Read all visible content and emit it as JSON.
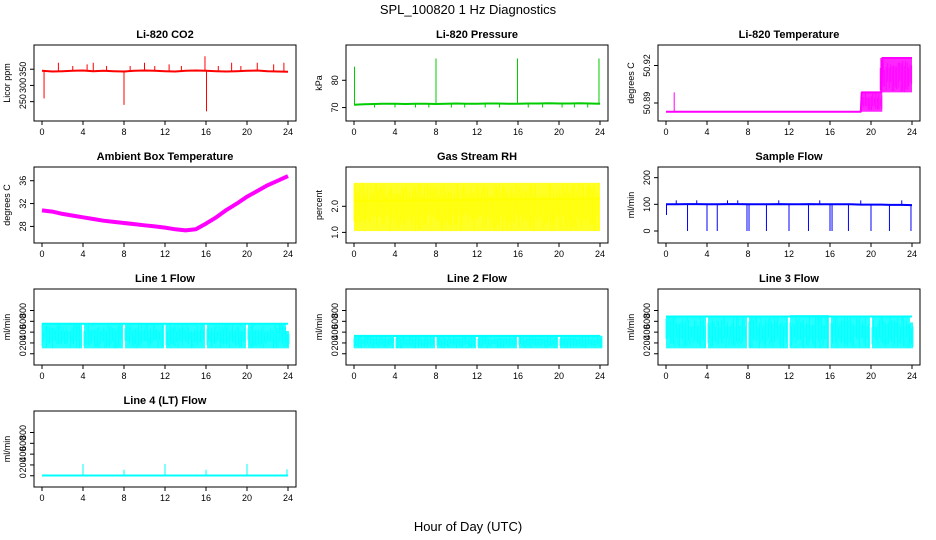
{
  "figure": {
    "title": "SPL_100820  1 Hz Diagnostics",
    "xlabel": "Hour of Day (UTC)"
  },
  "chart_data": [
    {
      "type": "line",
      "title": "Li-820 CO2",
      "ylabel": "Licor ppm",
      "color": "#ff0000",
      "xlim": [
        0,
        24
      ],
      "ylim": [
        215,
        400
      ],
      "xticks": [
        "0",
        "4",
        "8",
        "12",
        "16",
        "20",
        "24"
      ],
      "yticks": [
        250,
        300,
        350
      ],
      "x": [
        0,
        1,
        2,
        3,
        4,
        5,
        6,
        7,
        8,
        9,
        10,
        11,
        12,
        13,
        14,
        15,
        16,
        17,
        18,
        19,
        20,
        21,
        22,
        23,
        24
      ],
      "values": [
        345,
        343,
        344,
        345,
        346,
        344,
        345,
        344,
        343,
        345,
        346,
        345,
        344,
        343,
        345,
        346,
        345,
        344,
        343,
        344,
        345,
        346,
        344,
        343,
        342
      ],
      "spikes": [
        [
          0.2,
          260
        ],
        [
          1.6,
          370
        ],
        [
          3.0,
          360
        ],
        [
          4.4,
          365
        ],
        [
          5.0,
          370
        ],
        [
          6.3,
          360
        ],
        [
          8.0,
          240
        ],
        [
          8.6,
          360
        ],
        [
          10.0,
          370
        ],
        [
          11.0,
          360
        ],
        [
          12.4,
          365
        ],
        [
          13.6,
          360
        ],
        [
          15.9,
          390
        ],
        [
          16.05,
          220
        ],
        [
          17.2,
          360
        ],
        [
          18.5,
          370
        ],
        [
          19.4,
          360
        ],
        [
          21.0,
          370
        ],
        [
          22.6,
          365
        ],
        [
          23.6,
          370
        ]
      ]
    },
    {
      "type": "line",
      "title": "Li-820 Pressure",
      "ylabel": "kPa",
      "color": "#00cc00",
      "xlim": [
        0,
        24
      ],
      "ylim": [
        68,
        90
      ],
      "xticks": [
        "0",
        "4",
        "8",
        "12",
        "16",
        "20",
        "24"
      ],
      "yticks": [
        70,
        80
      ],
      "x": [
        0,
        1,
        2,
        3,
        4,
        5,
        6,
        7,
        8,
        9,
        10,
        11,
        12,
        13,
        14,
        15,
        16,
        17,
        18,
        19,
        20,
        21,
        22,
        23,
        24
      ],
      "values": [
        71,
        71.2,
        71.3,
        71.4,
        71.4,
        71.3,
        71.4,
        71.4,
        71.3,
        71.4,
        71.5,
        71.4,
        71.4,
        71.5,
        71.5,
        71.4,
        71.4,
        71.5,
        71.5,
        71.6,
        71.5,
        71.5,
        71.6,
        71.5,
        71.4
      ],
      "spikes": [
        [
          0.05,
          85
        ],
        [
          8.0,
          88
        ],
        [
          15.95,
          88
        ],
        [
          23.9,
          88
        ],
        [
          2.0,
          70
        ],
        [
          4.0,
          70
        ],
        [
          6.0,
          70
        ],
        [
          7.3,
          70
        ],
        [
          9.5,
          70
        ],
        [
          10.8,
          70
        ],
        [
          12.8,
          70
        ],
        [
          14.2,
          70
        ],
        [
          17.0,
          70
        ],
        [
          18.4,
          70
        ],
        [
          20.3,
          70
        ],
        [
          21.5,
          70
        ],
        [
          22.8,
          70
        ]
      ]
    },
    {
      "type": "line",
      "title": "Li-820 Temperature",
      "ylabel": "degrees C",
      "color": "#ff00ff",
      "xlim": [
        0,
        24
      ],
      "ylim": [
        50.882,
        50.93
      ],
      "xticks": [
        "0",
        "4",
        "8",
        "12",
        "16",
        "20",
        "24"
      ],
      "yticks": [
        50.89,
        50.92
      ],
      "yticklabels": [
        "50.89",
        "50.92"
      ],
      "x": [
        0,
        1,
        2,
        3,
        4,
        5,
        6,
        7,
        8,
        9,
        10,
        11,
        12,
        13,
        14,
        15,
        16,
        17,
        18,
        19,
        19.1,
        21,
        21.1,
        24
      ],
      "values": [
        50.883,
        50.883,
        50.883,
        50.883,
        50.883,
        50.883,
        50.883,
        50.883,
        50.883,
        50.883,
        50.883,
        50.883,
        50.883,
        50.883,
        50.883,
        50.883,
        50.883,
        50.883,
        50.883,
        50.883,
        50.8985,
        50.8985,
        50.926,
        50.926
      ],
      "spikes": [
        [
          0.8,
          50.8985
        ]
      ],
      "bands": [
        [
          19.0,
          21.1,
          50.883,
          50.8985
        ],
        [
          20.9,
          24,
          50.8985,
          50.926
        ]
      ]
    },
    {
      "type": "line",
      "title": "Ambient Box Temperature",
      "ylabel": "degrees C",
      "color": "#ff00ff",
      "xlim": [
        0,
        24
      ],
      "ylim": [
        26.5,
        37
      ],
      "xticks": [
        "0",
        "4",
        "8",
        "12",
        "16",
        "20",
        "24"
      ],
      "yticks": [
        28,
        32,
        36
      ],
      "x": [
        0,
        1,
        2,
        3,
        4,
        5,
        6,
        7,
        8,
        9,
        10,
        11,
        12,
        13,
        14,
        15,
        16,
        17,
        18,
        19,
        20,
        21,
        22,
        23,
        24
      ],
      "values": [
        30.8,
        30.6,
        30.2,
        29.9,
        29.6,
        29.3,
        29.0,
        28.8,
        28.6,
        28.4,
        28.2,
        28.0,
        27.8,
        27.5,
        27.3,
        27.5,
        28.5,
        29.6,
        30.9,
        32.0,
        33.2,
        34.2,
        35.2,
        36.0,
        36.8
      ]
    },
    {
      "type": "line",
      "title": "Gas Stream RH",
      "ylabel": "percent",
      "color": "#ffff00",
      "xlim": [
        0,
        24
      ],
      "ylim": [
        0.9,
        3.2
      ],
      "xticks": [
        "0",
        "4",
        "8",
        "12",
        "16",
        "20",
        "24"
      ],
      "yticks": [
        1.0,
        2.0
      ],
      "yticklabels": [
        "1.0",
        "2.0"
      ],
      "x": [
        0,
        24
      ],
      "values": [
        2.2,
        2.3
      ],
      "bands": [
        [
          0,
          24,
          1.05,
          2.9
        ]
      ]
    },
    {
      "type": "line",
      "title": "Sample Flow",
      "ylabel": "ml/min",
      "color": "#0000ff",
      "xlim": [
        0,
        24
      ],
      "ylim": [
        -15,
        210
      ],
      "xticks": [
        "0",
        "4",
        "8",
        "12",
        "16",
        "20",
        "24"
      ],
      "yticks": [
        0,
        100,
        200
      ],
      "x": [
        0,
        1,
        2,
        3,
        4,
        5,
        6,
        7,
        8,
        9,
        10,
        11,
        12,
        13,
        14,
        15,
        16,
        17,
        18,
        19,
        20,
        21,
        22,
        23,
        24
      ],
      "values": [
        100,
        100,
        101,
        101,
        100,
        100,
        101,
        101,
        100,
        100,
        100,
        101,
        100,
        100,
        101,
        100,
        100,
        100,
        100,
        99,
        99,
        99,
        98,
        98,
        97
      ],
      "spikes": [
        [
          0.05,
          60
        ],
        [
          2.1,
          0
        ],
        [
          4.0,
          0
        ],
        [
          5.0,
          0
        ],
        [
          7.9,
          0
        ],
        [
          8.1,
          0
        ],
        [
          9.8,
          0
        ],
        [
          12.0,
          0
        ],
        [
          13.9,
          0
        ],
        [
          16.0,
          0
        ],
        [
          16.2,
          0
        ],
        [
          17.8,
          0
        ],
        [
          20.0,
          0
        ],
        [
          21.8,
          0
        ],
        [
          23.9,
          0
        ],
        [
          1.0,
          115
        ],
        [
          3.0,
          115
        ],
        [
          6.0,
          115
        ],
        [
          7.0,
          115
        ],
        [
          11.0,
          115
        ],
        [
          15.0,
          115
        ],
        [
          19.0,
          115
        ],
        [
          23.0,
          115
        ]
      ]
    },
    {
      "type": "line",
      "title": "Line 1 Flow",
      "ylabel": "ml/min",
      "color": "#00ffff",
      "xlim": [
        0,
        24
      ],
      "ylim": [
        -60,
        1050
      ],
      "xticks": [
        "0",
        "4",
        "8",
        "12",
        "16",
        "20",
        "24"
      ],
      "yticks": [
        0,
        200,
        400,
        600,
        800
      ],
      "x": [
        0,
        24
      ],
      "values": [
        555,
        555
      ],
      "bands": [
        [
          0,
          3.9,
          100,
          570
        ],
        [
          4.1,
          7.9,
          100,
          565
        ],
        [
          8.1,
          11.9,
          100,
          565
        ],
        [
          12.1,
          15.9,
          100,
          565
        ],
        [
          16.1,
          19.9,
          100,
          560
        ],
        [
          20.1,
          23.8,
          100,
          550
        ],
        [
          23.8,
          24.1,
          100,
          420
        ]
      ]
    },
    {
      "type": "line",
      "title": "Line 2 Flow",
      "ylabel": "ml/min",
      "color": "#00ffff",
      "xlim": [
        0,
        24
      ],
      "ylim": [
        -60,
        1050
      ],
      "xticks": [
        "0",
        "4",
        "8",
        "12",
        "16",
        "20",
        "24"
      ],
      "yticks": [
        0,
        200,
        400,
        600,
        800
      ],
      "x": [
        0,
        24
      ],
      "values": [
        330,
        330
      ],
      "bands": [
        [
          0,
          3.9,
          100,
          340
        ],
        [
          4.1,
          7.9,
          100,
          340
        ],
        [
          8.1,
          11.9,
          100,
          340
        ],
        [
          12.1,
          15.9,
          100,
          345
        ],
        [
          16.1,
          19.9,
          100,
          340
        ],
        [
          20.1,
          24.2,
          100,
          335
        ]
      ]
    },
    {
      "type": "line",
      "title": "Line 3 Flow",
      "ylabel": "ml/min",
      "color": "#00ffff",
      "xlim": [
        0,
        24
      ],
      "ylim": [
        -60,
        1050
      ],
      "xticks": [
        "0",
        "4",
        "8",
        "12",
        "16",
        "20",
        "24"
      ],
      "yticks": [
        0,
        200,
        400,
        600,
        800
      ],
      "x": [
        0,
        24
      ],
      "values": [
        690,
        690
      ],
      "bands": [
        [
          0,
          3.9,
          100,
          700
        ],
        [
          4.1,
          7.9,
          100,
          700
        ],
        [
          8.1,
          11.9,
          100,
          705
        ],
        [
          12.1,
          15.9,
          100,
          715
        ],
        [
          16.1,
          19.9,
          100,
          705
        ],
        [
          20.1,
          23.8,
          100,
          700
        ],
        [
          23.8,
          24.1,
          100,
          580
        ]
      ]
    },
    {
      "type": "line",
      "title": "Line 4 (LT) Flow",
      "ylabel": "ml/min",
      "color": "#00ffff",
      "xlim": [
        0,
        24
      ],
      "ylim": [
        -60,
        1050
      ],
      "xticks": [
        "0",
        "4",
        "8",
        "12",
        "16",
        "20",
        "24"
      ],
      "yticks": [
        0,
        200,
        400,
        600,
        800
      ],
      "x": [
        0,
        4,
        8,
        12,
        16,
        20,
        24
      ],
      "values": [
        5,
        5,
        5,
        5,
        5,
        5,
        5
      ],
      "spikes": [
        [
          4.0,
          220
        ],
        [
          8.0,
          110
        ],
        [
          12.0,
          220
        ],
        [
          16.0,
          110
        ],
        [
          20.0,
          220
        ],
        [
          23.9,
          120
        ]
      ]
    }
  ]
}
